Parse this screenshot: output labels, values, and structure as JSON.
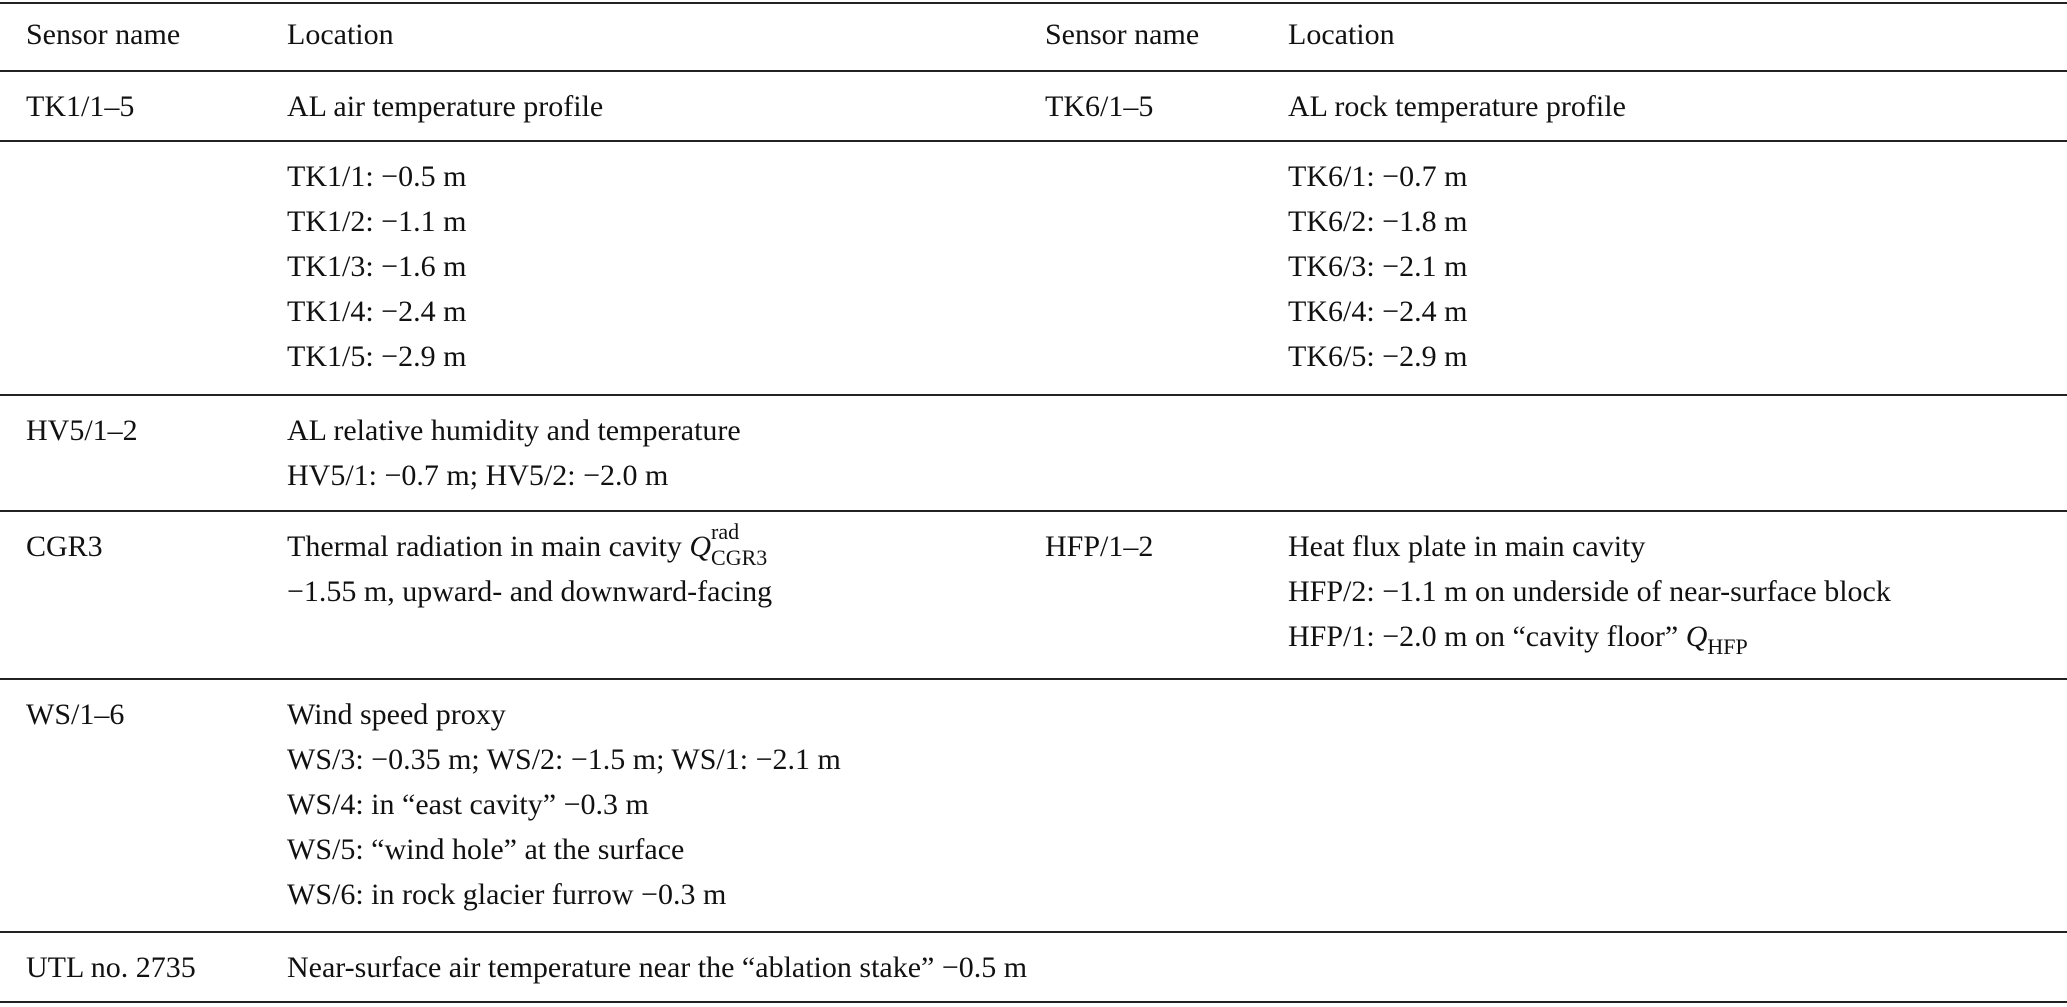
{
  "table": {
    "headers": [
      "Sensor name",
      "Location",
      "Sensor name",
      "Location"
    ],
    "rows": [
      {
        "cells": [
          [
            {
              "text": "TK1/1–5"
            }
          ],
          [
            {
              "text": "AL air temperature profile"
            }
          ],
          [
            {
              "text": "TK6/1–5"
            }
          ],
          [
            {
              "text": "AL rock temperature profile"
            }
          ]
        ]
      },
      {
        "cells": [
          [],
          [
            {
              "text": "TK1/1: −0.5 m"
            },
            {
              "text": "TK1/2: −1.1 m"
            },
            {
              "text": "TK1/3: −1.6 m"
            },
            {
              "text": "TK1/4: −2.4 m"
            },
            {
              "text": "TK1/5: −2.9 m"
            }
          ],
          [],
          [
            {
              "text": "TK6/1: −0.7 m"
            },
            {
              "text": "TK6/2: −1.8 m"
            },
            {
              "text": "TK6/3: −2.1 m"
            },
            {
              "text": "TK6/4: −2.4 m"
            },
            {
              "text": "TK6/5: −2.9 m"
            }
          ]
        ]
      },
      {
        "cells": [
          [
            {
              "text": "HV5/1–2"
            }
          ],
          [
            {
              "text": "AL relative humidity and temperature"
            },
            {
              "text": "HV5/1: −0.7 m; HV5/2: −2.0 m"
            }
          ],
          [],
          []
        ]
      },
      {
        "cells": [
          [
            {
              "text": "CGR3"
            }
          ],
          [
            {
              "text": "Thermal radiation in main cavity ",
              "symbol": "Q",
              "sup": "rad",
              "sub": "CGR3"
            },
            {
              "text": "−1.55 m, upward- and downward-facing"
            }
          ],
          [
            {
              "text": "HFP/1–2"
            }
          ],
          [
            {
              "text": "Heat flux plate in main cavity"
            },
            {
              "text": "HFP/2: −1.1 m on underside of near-surface block"
            },
            {
              "text": "HFP/1: −2.0 m on “cavity floor” ",
              "symbol": "Q",
              "sub": "HFP"
            }
          ]
        ]
      },
      {
        "cells": [
          [
            {
              "text": "WS/1–6"
            }
          ],
          [
            {
              "text": "Wind speed proxy"
            },
            {
              "text": "WS/3: −0.35 m; WS/2: −1.5 m; WS/1: −2.1 m"
            },
            {
              "text": "WS/4: in “east cavity” −0.3 m"
            },
            {
              "text": "WS/5: “wind hole” at the surface"
            },
            {
              "text": "WS/6: in rock glacier furrow −0.3 m"
            }
          ],
          [],
          []
        ]
      },
      {
        "cells": [
          [
            {
              "text": "UTL no. 2735"
            }
          ],
          [
            {
              "text": "Near-surface air temperature near the “ablation stake” −0.5 m"
            }
          ],
          [],
          []
        ]
      }
    ]
  }
}
